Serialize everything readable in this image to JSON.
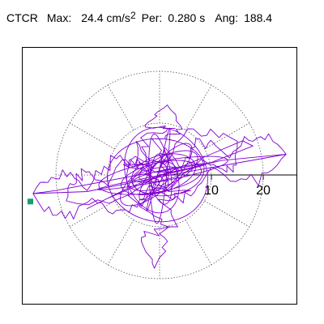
{
  "header": {
    "station": "CTCR",
    "max_label": "Max:",
    "max_value": "24.4 cm/s",
    "max_exp": "2",
    "per_label": "Per:",
    "per_value": "0.280 s",
    "ang_label": "Ang:",
    "ang_value": "188.4"
  },
  "colors": {
    "trace": "#8000d0",
    "grid": "#555555",
    "frame": "#000000",
    "marker": "#16a06a"
  },
  "chart_data": {
    "type": "scatter",
    "title": "CTCR  Max: 24.4 cm/s2  Per: 0.280 s  Ang: 188.4",
    "polar_grid": {
      "ring_values": [
        10,
        20
      ],
      "radial_spoke_count": 12,
      "grid_style": "dotted"
    },
    "x_axis_ticks": [
      10,
      20
    ],
    "xlim": [
      -25,
      25
    ],
    "ylim": [
      -25,
      25
    ],
    "max_amplitude": 24.4,
    "max_unit": "cm/s2",
    "period_s": 0.28,
    "angle_deg": 188.4,
    "trajectory_note_points": [
      [
        0.0,
        0.0
      ],
      [
        4.2,
        1.1
      ],
      [
        13.5,
        3.3
      ],
      [
        24.4,
        4.0
      ],
      [
        10.0,
        1.5
      ],
      [
        -2.0,
        -2.0
      ],
      [
        -13.0,
        -4.5
      ],
      [
        -24.4,
        -3.6
      ],
      [
        -14.0,
        -3.0
      ],
      [
        -2.0,
        0.5
      ],
      [
        3.0,
        9.0
      ],
      [
        1.5,
        13.5
      ],
      [
        -1.5,
        7.0
      ],
      [
        -4.0,
        -6.0
      ],
      [
        -1.0,
        -18.0
      ],
      [
        3.5,
        -10.0
      ],
      [
        6.0,
        -3.0
      ],
      [
        -4.5,
        6.5
      ],
      [
        -7.0,
        2.0
      ],
      [
        -6.0,
        -4.0
      ],
      [
        1.0,
        2.0
      ],
      [
        15.0,
        6.5
      ],
      [
        8.0,
        3.0
      ],
      [
        -18.0,
        -5.0
      ],
      [
        -10.0,
        -2.0
      ],
      [
        0.0,
        0.0
      ]
    ]
  }
}
